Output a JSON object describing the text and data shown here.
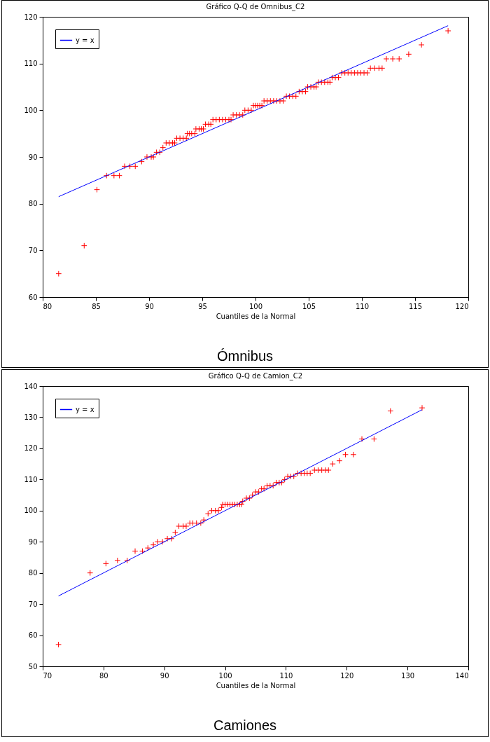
{
  "chart_data": [
    {
      "type": "scatter",
      "title": "Gráfico Q-Q de Omnibus_C2",
      "xlabel": "Cuantiles de la Normal",
      "annotations": [
        "Ómnibus"
      ],
      "xlim": [
        80,
        120
      ],
      "ylim": [
        60,
        120
      ],
      "xticks": [
        80,
        85,
        90,
        95,
        100,
        105,
        110,
        115,
        120
      ],
      "yticks": [
        60,
        70,
        80,
        90,
        100,
        110,
        120
      ],
      "legend": "top left",
      "series": [
        {
          "marker": "cross",
          "color": "#ff0000",
          "x": [
            81.5,
            83.9,
            85.1,
            86.0,
            86.7,
            87.2,
            87.7,
            88.2,
            88.7,
            89.3,
            89.8,
            90.2,
            90.4,
            90.7,
            91.0,
            91.3,
            91.6,
            91.9,
            92.2,
            92.4,
            92.6,
            92.9,
            93.2,
            93.5,
            93.6,
            93.8,
            94.0,
            94.3,
            94.4,
            94.7,
            94.9,
            95.1,
            95.3,
            95.6,
            95.8,
            96.0,
            96.3,
            96.6,
            96.9,
            97.2,
            97.5,
            97.7,
            97.9,
            98.2,
            98.5,
            98.8,
            99.0,
            99.3,
            99.6,
            99.8,
            100.0,
            100.2,
            100.4,
            100.6,
            100.8,
            101.1,
            101.4,
            101.7,
            102.0,
            102.3,
            102.6,
            102.9,
            103.2,
            103.5,
            103.8,
            104.1,
            104.4,
            104.7,
            104.9,
            105.2,
            105.5,
            105.7,
            105.9,
            106.2,
            106.5,
            106.8,
            107.0,
            107.2,
            107.5,
            107.8,
            108.1,
            108.4,
            108.7,
            109.0,
            109.3,
            109.6,
            109.9,
            110.2,
            110.5,
            110.8,
            111.2,
            111.6,
            111.9,
            112.3,
            112.9,
            113.5,
            114.4,
            115.6,
            118.1
          ],
          "values": [
            65,
            71,
            83,
            86,
            86,
            86,
            88,
            88,
            88,
            89,
            90,
            90,
            90,
            91,
            91,
            92,
            93,
            93,
            93,
            93,
            94,
            94,
            94,
            94,
            95,
            95,
            95,
            95,
            96,
            96,
            96,
            96,
            97,
            97,
            97,
            98,
            98,
            98,
            98,
            98,
            98,
            98,
            99,
            99,
            99,
            99,
            100,
            100,
            100,
            101,
            101,
            101,
            101,
            101,
            102,
            102,
            102,
            102,
            102,
            102,
            102,
            103,
            103,
            103,
            103,
            104,
            104,
            104,
            105,
            105,
            105,
            105,
            106,
            106,
            106,
            106,
            106,
            107,
            107,
            107,
            108,
            108,
            108,
            108,
            108,
            108,
            108,
            108,
            108,
            109,
            109,
            109,
            109,
            111,
            111,
            111,
            112,
            114,
            117
          ]
        },
        {
          "type": "line",
          "name": "y = x",
          "color": "#0000ff",
          "x": [
            81.5,
            118.1
          ],
          "values": [
            81.5,
            118.1
          ]
        }
      ]
    },
    {
      "type": "scatter",
      "title": "Gráfico Q-Q de Camion_C2",
      "xlabel": "Cuantiles de la Normal",
      "annotations": [
        "Camiones"
      ],
      "xlim": [
        70,
        140
      ],
      "ylim": [
        50,
        140
      ],
      "xticks": [
        70,
        80,
        90,
        100,
        110,
        120,
        130,
        140
      ],
      "yticks": [
        50,
        60,
        70,
        80,
        90,
        100,
        110,
        120,
        130,
        140
      ],
      "legend": "top left",
      "series": [
        {
          "marker": "cross",
          "color": "#ff0000",
          "x": [
            72.6,
            77.8,
            80.4,
            82.3,
            83.9,
            85.2,
            86.4,
            87.3,
            88.2,
            88.9,
            89.7,
            90.5,
            91.2,
            91.8,
            92.4,
            93.1,
            93.6,
            94.2,
            94.7,
            95.3,
            96.0,
            96.5,
            97.2,
            97.8,
            98.4,
            98.9,
            99.4,
            99.6,
            100.0,
            100.4,
            100.8,
            101.2,
            101.6,
            102.0,
            102.4,
            102.7,
            102.9,
            103.5,
            104.0,
            104.5,
            105.0,
            105.5,
            106.0,
            106.4,
            106.9,
            107.4,
            107.9,
            108.4,
            108.9,
            109.3,
            109.8,
            110.3,
            110.8,
            111.3,
            111.9,
            112.5,
            113.0,
            113.5,
            114.0,
            114.7,
            115.3,
            115.9,
            116.5,
            117.0,
            117.7,
            118.8,
            119.8,
            121.1,
            122.5,
            124.5,
            127.2,
            132.4
          ],
          "values": [
            57,
            80,
            83,
            84,
            84,
            87,
            87,
            88,
            89,
            90,
            90,
            91,
            91,
            93,
            95,
            95,
            95,
            96,
            96,
            96,
            96,
            97,
            99,
            100,
            100,
            100,
            101,
            102,
            102,
            102,
            102,
            102,
            102,
            102,
            102,
            102,
            103,
            104,
            104,
            105,
            106,
            106,
            107,
            107,
            108,
            108,
            108,
            109,
            109,
            109,
            110,
            111,
            111,
            111,
            112,
            112,
            112,
            112,
            112,
            113,
            113,
            113,
            113,
            113,
            115,
            116,
            118,
            118,
            123,
            123,
            132,
            133
          ]
        },
        {
          "type": "line",
          "name": "y = x",
          "color": "#0000ff",
          "x": [
            72.6,
            132.4
          ],
          "values": [
            72.6,
            132.4
          ]
        }
      ]
    }
  ]
}
